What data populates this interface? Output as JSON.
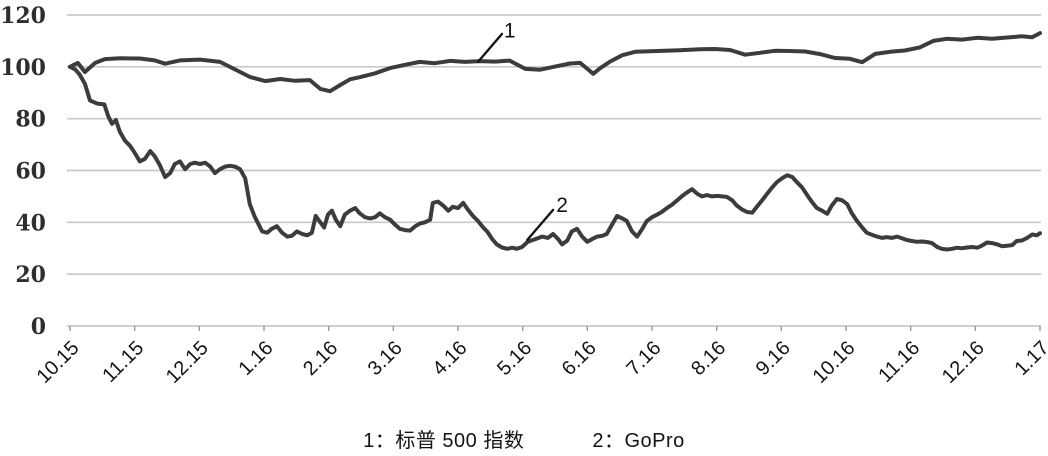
{
  "figure": {
    "background": "#ffffff",
    "line_color": "#3c3c3c",
    "grid_color": "#c9c9c9",
    "tick_color": "#9a9a9a",
    "text_color": "#141414"
  },
  "legend": {
    "items": [
      {
        "text": "1：标普 500 指数"
      },
      {
        "text": "2：GoPro"
      }
    ]
  },
  "chart_data": {
    "type": "line",
    "title": "",
    "xlabel": "",
    "ylabel": "",
    "ylim": [
      0,
      120
    ],
    "yticks": [
      0,
      20,
      40,
      60,
      80,
      100,
      120
    ],
    "x_categories": [
      "10.15",
      "11.15",
      "12.15",
      "1.16",
      "2.16",
      "3.16",
      "4.16",
      "5.16",
      "6.16",
      "7.16",
      "8.16",
      "9.16",
      "10.16",
      "11.16",
      "12.16",
      "1.17"
    ],
    "x_unit": "month index, 0 = 10.15, 15 = 1.17",
    "grid": "horizontal",
    "legend_position": "bottom",
    "annotations": [
      {
        "label": "1",
        "text_at": [
          6.8,
          111.3
        ],
        "line_from": [
          6.68,
          112.7
        ],
        "line_to": [
          6.31,
          101.9
        ]
      },
      {
        "label": "2",
        "text_at": [
          7.61,
          44.0
        ],
        "line_from": [
          7.47,
          44.8
        ],
        "line_to": [
          7.07,
          33.2
        ]
      }
    ],
    "series": [
      {
        "id": "1",
        "name": "标普 500 指数",
        "points": [
          [
            0.0,
            100
          ],
          [
            0.12,
            101.5
          ],
          [
            0.23,
            98
          ],
          [
            0.39,
            101.5
          ],
          [
            0.54,
            103
          ],
          [
            0.77,
            103.3
          ],
          [
            1.08,
            103.2
          ],
          [
            1.31,
            102.5
          ],
          [
            1.47,
            101.2
          ],
          [
            1.7,
            102.5
          ],
          [
            2.01,
            102.8
          ],
          [
            2.32,
            101.9
          ],
          [
            2.55,
            99
          ],
          [
            2.78,
            96.1
          ],
          [
            3.02,
            94.5
          ],
          [
            3.25,
            95.3
          ],
          [
            3.48,
            94.6
          ],
          [
            3.71,
            94.9
          ],
          [
            3.87,
            91.5
          ],
          [
            4.02,
            90.6
          ],
          [
            4.18,
            93
          ],
          [
            4.33,
            95.2
          ],
          [
            4.48,
            96
          ],
          [
            4.72,
            97.5
          ],
          [
            4.95,
            99.5
          ],
          [
            5.18,
            100.8
          ],
          [
            5.41,
            101.9
          ],
          [
            5.64,
            101.4
          ],
          [
            5.88,
            102.3
          ],
          [
            6.11,
            101.9
          ],
          [
            6.34,
            102.2
          ],
          [
            6.57,
            102
          ],
          [
            6.8,
            102.4
          ],
          [
            7.04,
            99.2
          ],
          [
            7.27,
            98.9
          ],
          [
            7.5,
            100.1
          ],
          [
            7.73,
            101.3
          ],
          [
            7.89,
            101.5
          ],
          [
            8.01,
            99
          ],
          [
            8.09,
            97.3
          ],
          [
            8.2,
            99.5
          ],
          [
            8.35,
            102
          ],
          [
            8.54,
            104.5
          ],
          [
            8.74,
            105.8
          ],
          [
            8.97,
            106
          ],
          [
            9.2,
            106.2
          ],
          [
            9.43,
            106.4
          ],
          [
            9.74,
            106.8
          ],
          [
            9.97,
            106.9
          ],
          [
            10.21,
            106.5
          ],
          [
            10.44,
            104.7
          ],
          [
            10.67,
            105.4
          ],
          [
            10.9,
            106.2
          ],
          [
            11.13,
            106.1
          ],
          [
            11.37,
            105.9
          ],
          [
            11.6,
            104.9
          ],
          [
            11.83,
            103.4
          ],
          [
            12.06,
            103.1
          ],
          [
            12.25,
            101.8
          ],
          [
            12.45,
            105
          ],
          [
            12.68,
            105.8
          ],
          [
            12.91,
            106.3
          ],
          [
            13.14,
            107.5
          ],
          [
            13.35,
            110
          ],
          [
            13.56,
            110.8
          ],
          [
            13.79,
            110.5
          ],
          [
            14.03,
            111.2
          ],
          [
            14.26,
            110.8
          ],
          [
            14.49,
            111.3
          ],
          [
            14.72,
            111.8
          ],
          [
            14.88,
            111.4
          ],
          [
            15.0,
            113
          ]
        ]
      },
      {
        "id": "2",
        "name": "GoPro",
        "points": [
          [
            0.0,
            100
          ],
          [
            0.08,
            99
          ],
          [
            0.15,
            97
          ],
          [
            0.23,
            93.5
          ],
          [
            0.31,
            87
          ],
          [
            0.42,
            85.8
          ],
          [
            0.53,
            85.5
          ],
          [
            0.59,
            81
          ],
          [
            0.65,
            78
          ],
          [
            0.71,
            79.5
          ],
          [
            0.77,
            75
          ],
          [
            0.85,
            71.5
          ],
          [
            0.93,
            69.5
          ],
          [
            1.01,
            66.5
          ],
          [
            1.08,
            63.5
          ],
          [
            1.16,
            64.5
          ],
          [
            1.24,
            67.5
          ],
          [
            1.31,
            65.5
          ],
          [
            1.39,
            62
          ],
          [
            1.47,
            57.5
          ],
          [
            1.55,
            59
          ],
          [
            1.62,
            62.5
          ],
          [
            1.7,
            63.5
          ],
          [
            1.78,
            60.5
          ],
          [
            1.86,
            62.5
          ],
          [
            1.93,
            63
          ],
          [
            2.01,
            62.5
          ],
          [
            2.09,
            63
          ],
          [
            2.17,
            61.5
          ],
          [
            2.24,
            59
          ],
          [
            2.32,
            60.5
          ],
          [
            2.4,
            61.5
          ],
          [
            2.47,
            61.8
          ],
          [
            2.55,
            61.5
          ],
          [
            2.63,
            60.5
          ],
          [
            2.71,
            57
          ],
          [
            2.78,
            47
          ],
          [
            2.86,
            42
          ],
          [
            2.91,
            39.5
          ],
          [
            2.97,
            36.5
          ],
          [
            3.05,
            36
          ],
          [
            3.12,
            37.5
          ],
          [
            3.2,
            38.5
          ],
          [
            3.28,
            36
          ],
          [
            3.36,
            34.5
          ],
          [
            3.43,
            34.8
          ],
          [
            3.51,
            36.5
          ],
          [
            3.59,
            35.5
          ],
          [
            3.67,
            35
          ],
          [
            3.74,
            36
          ],
          [
            3.8,
            42.5
          ],
          [
            3.87,
            40
          ],
          [
            3.93,
            38
          ],
          [
            3.99,
            43
          ],
          [
            4.05,
            44.5
          ],
          [
            4.11,
            41
          ],
          [
            4.18,
            38.5
          ],
          [
            4.25,
            43
          ],
          [
            4.33,
            44.5
          ],
          [
            4.41,
            45.5
          ],
          [
            4.48,
            43.5
          ],
          [
            4.56,
            42
          ],
          [
            4.64,
            41.5
          ],
          [
            4.72,
            42
          ],
          [
            4.79,
            43.5
          ],
          [
            4.87,
            42
          ],
          [
            4.95,
            41
          ],
          [
            5.03,
            39
          ],
          [
            5.1,
            37.5
          ],
          [
            5.18,
            37
          ],
          [
            5.26,
            36.8
          ],
          [
            5.34,
            38.5
          ],
          [
            5.41,
            39.5
          ],
          [
            5.49,
            40
          ],
          [
            5.57,
            41
          ],
          [
            5.61,
            47.5
          ],
          [
            5.69,
            48
          ],
          [
            5.77,
            46.5
          ],
          [
            5.85,
            44.5
          ],
          [
            5.92,
            46
          ],
          [
            6.0,
            45.5
          ],
          [
            6.08,
            47.5
          ],
          [
            6.15,
            45
          ],
          [
            6.23,
            42.5
          ],
          [
            6.31,
            40.5
          ],
          [
            6.39,
            38
          ],
          [
            6.45,
            36.5
          ],
          [
            6.53,
            33.5
          ],
          [
            6.6,
            31.5
          ],
          [
            6.68,
            30.3
          ],
          [
            6.76,
            29.8
          ],
          [
            6.84,
            30.2
          ],
          [
            6.91,
            29.8
          ],
          [
            6.99,
            30.5
          ],
          [
            7.08,
            32.5
          ],
          [
            7.19,
            33.5
          ],
          [
            7.3,
            34.5
          ],
          [
            7.39,
            34
          ],
          [
            7.47,
            35.5
          ],
          [
            7.55,
            33.5
          ],
          [
            7.61,
            31.5
          ],
          [
            7.69,
            33
          ],
          [
            7.76,
            36.5
          ],
          [
            7.84,
            37.5
          ],
          [
            7.92,
            34.5
          ],
          [
            8.0,
            32.5
          ],
          [
            8.07,
            33.5
          ],
          [
            8.15,
            34.5
          ],
          [
            8.23,
            34.8
          ],
          [
            8.3,
            35.5
          ],
          [
            8.38,
            39
          ],
          [
            8.46,
            42.5
          ],
          [
            8.54,
            41.5
          ],
          [
            8.61,
            40.5
          ],
          [
            8.69,
            36.5
          ],
          [
            8.77,
            34.5
          ],
          [
            8.85,
            37.5
          ],
          [
            8.92,
            40.5
          ],
          [
            9.0,
            42
          ],
          [
            9.08,
            43
          ],
          [
            9.15,
            44
          ],
          [
            9.23,
            45.5
          ],
          [
            9.31,
            46.8
          ],
          [
            9.39,
            48.5
          ],
          [
            9.46,
            50
          ],
          [
            9.54,
            51.5
          ],
          [
            9.62,
            52.8
          ],
          [
            9.7,
            51
          ],
          [
            9.77,
            50
          ],
          [
            9.85,
            50.5
          ],
          [
            9.93,
            50
          ],
          [
            10.01,
            50.2
          ],
          [
            10.08,
            50
          ],
          [
            10.16,
            49.8
          ],
          [
            10.24,
            48.5
          ],
          [
            10.31,
            46.5
          ],
          [
            10.39,
            45
          ],
          [
            10.47,
            44
          ],
          [
            10.55,
            43.7
          ],
          [
            10.62,
            46
          ],
          [
            10.7,
            48.4
          ],
          [
            10.78,
            51
          ],
          [
            10.86,
            53.5
          ],
          [
            10.93,
            55.5
          ],
          [
            11.01,
            57
          ],
          [
            11.09,
            58.2
          ],
          [
            11.17,
            57.5
          ],
          [
            11.24,
            55.5
          ],
          [
            11.32,
            53.5
          ],
          [
            11.4,
            50.5
          ],
          [
            11.47,
            48
          ],
          [
            11.55,
            45.5
          ],
          [
            11.63,
            44.5
          ],
          [
            11.71,
            43.3
          ],
          [
            11.78,
            46.5
          ],
          [
            11.86,
            49
          ],
          [
            11.94,
            48.5
          ],
          [
            12.02,
            47
          ],
          [
            12.09,
            43.5
          ],
          [
            12.17,
            40.5
          ],
          [
            12.25,
            38
          ],
          [
            12.32,
            36
          ],
          [
            12.4,
            35.2
          ],
          [
            12.48,
            34.5
          ],
          [
            12.56,
            34
          ],
          [
            12.63,
            34.3
          ],
          [
            12.71,
            34
          ],
          [
            12.79,
            34.5
          ],
          [
            12.87,
            33.8
          ],
          [
            12.94,
            33.2
          ],
          [
            13.02,
            32.8
          ],
          [
            13.1,
            32.5
          ],
          [
            13.18,
            32.6
          ],
          [
            13.25,
            32.4
          ],
          [
            13.33,
            32
          ],
          [
            13.41,
            30.5
          ],
          [
            13.48,
            29.8
          ],
          [
            13.56,
            29.5
          ],
          [
            13.64,
            29.8
          ],
          [
            13.72,
            30.2
          ],
          [
            13.79,
            30
          ],
          [
            13.87,
            30.3
          ],
          [
            13.95,
            30.5
          ],
          [
            14.03,
            30.2
          ],
          [
            14.1,
            31
          ],
          [
            14.18,
            32.2
          ],
          [
            14.26,
            32
          ],
          [
            14.34,
            31.5
          ],
          [
            14.41,
            30.8
          ],
          [
            14.49,
            31
          ],
          [
            14.57,
            31.2
          ],
          [
            14.64,
            32.8
          ],
          [
            14.72,
            33
          ],
          [
            14.8,
            34
          ],
          [
            14.88,
            35.3
          ],
          [
            14.95,
            35
          ],
          [
            15.0,
            35.8
          ]
        ]
      }
    ]
  }
}
